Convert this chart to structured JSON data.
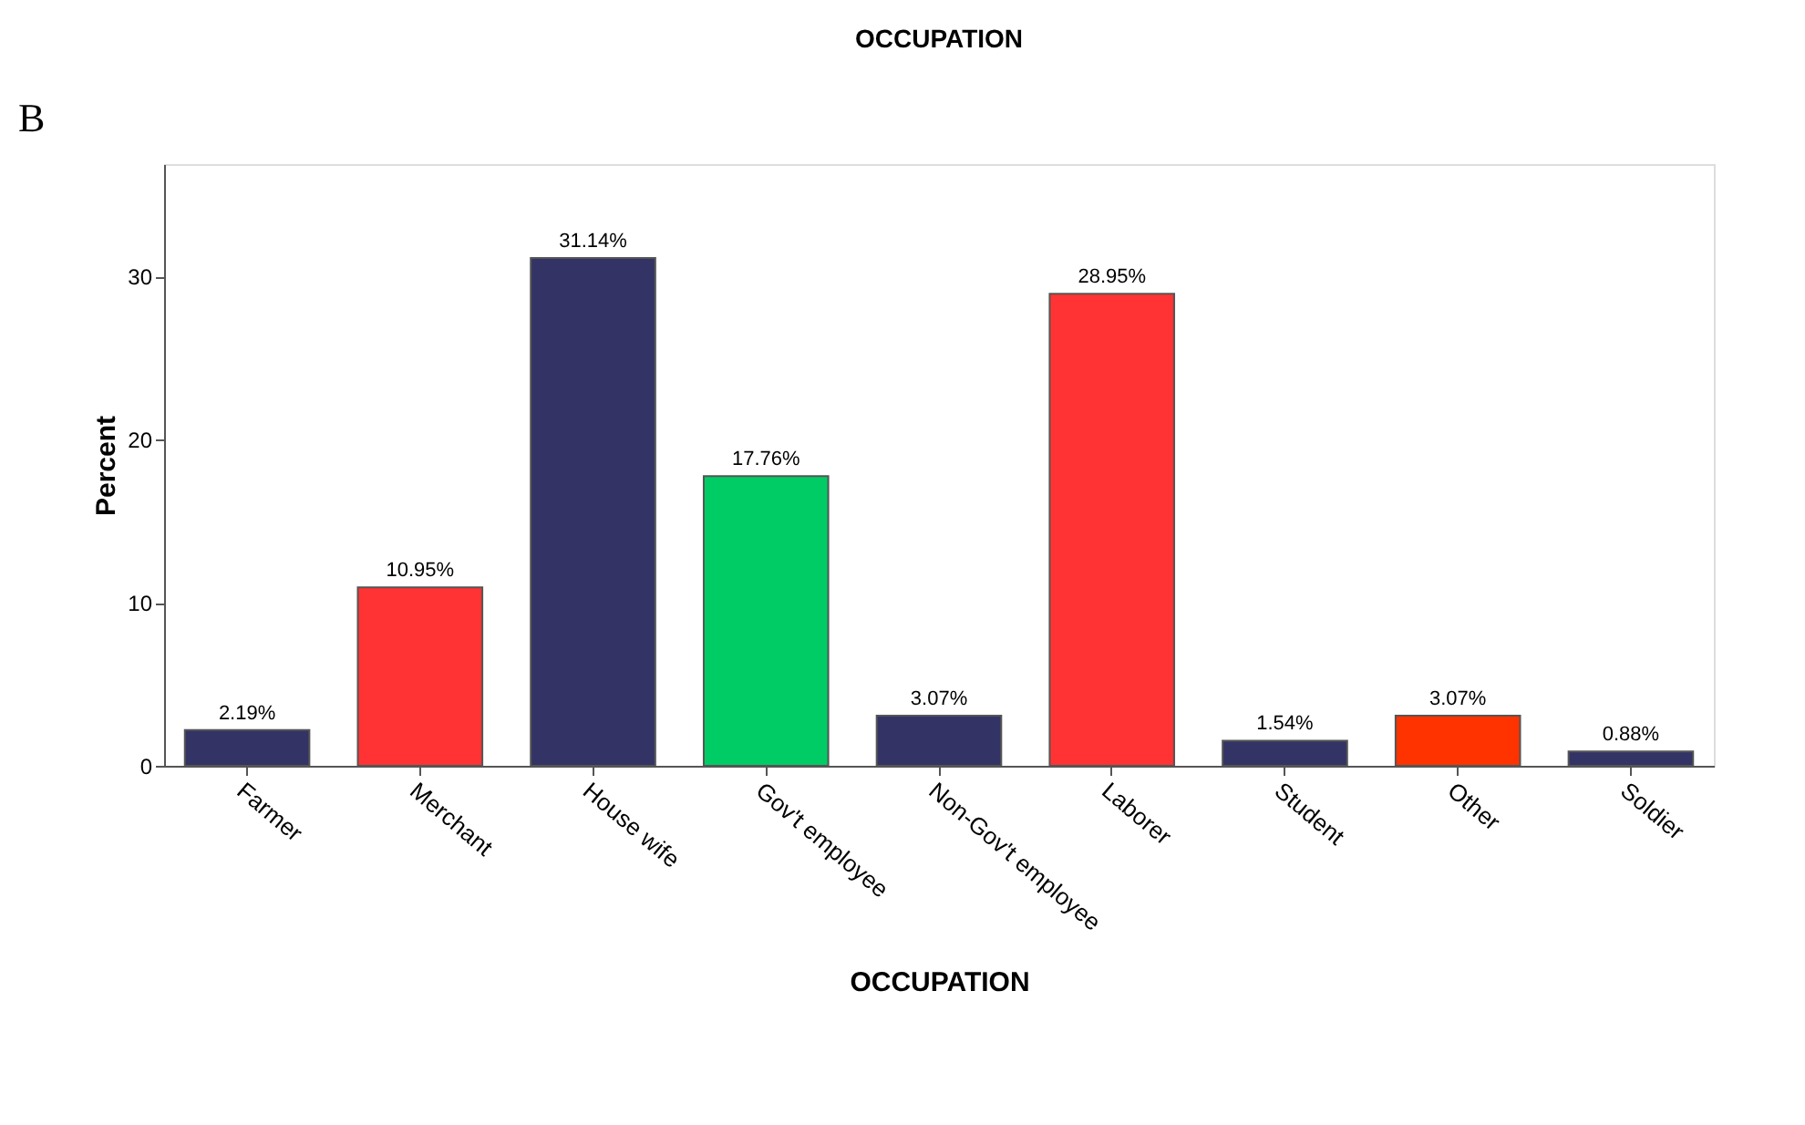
{
  "chart_data": {
    "type": "bar",
    "title": "OCCUPATION",
    "xlabel": "OCCUPATION",
    "ylabel": "Percent",
    "categories": [
      "Farmer",
      "Merchant",
      "House wife",
      "Gov't employee",
      "Non-Gov't employee",
      "Laborer",
      "Student",
      "Other",
      "Soldier"
    ],
    "values": [
      2.19,
      10.95,
      31.14,
      17.76,
      3.07,
      28.95,
      1.54,
      3.07,
      0.88
    ],
    "value_labels": [
      "2.19%",
      "10.95%",
      "31.14%",
      "17.76%",
      "3.07%",
      "28.95%",
      "1.54%",
      "3.07%",
      "0.88%"
    ],
    "colors": [
      "#333366",
      "#ff3333",
      "#333366",
      "#00cc66",
      "#333366",
      "#ff3333",
      "#333366",
      "#ff3300",
      "#333366"
    ],
    "ylim": [
      0,
      36.9
    ],
    "yticks": [
      0,
      10,
      20,
      30
    ],
    "grid": false,
    "annotations": [
      "B"
    ]
  }
}
